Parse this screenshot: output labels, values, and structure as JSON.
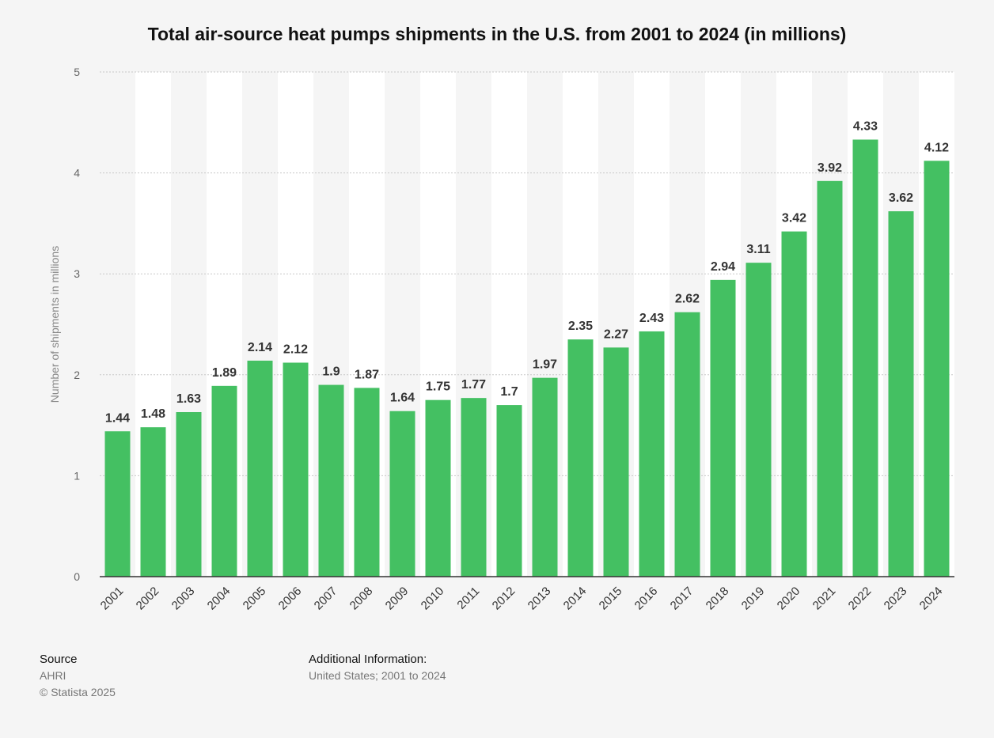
{
  "chart_data": {
    "type": "bar",
    "title": "Total air-source heat pumps shipments in the U.S. from 2001 to 2024 (in millions)",
    "xlabel": "",
    "ylabel": "Number of shipments in millions",
    "ylim": [
      0,
      5
    ],
    "yticks": [
      0,
      1,
      2,
      3,
      4,
      5
    ],
    "grid": true,
    "categories": [
      "2001",
      "2002",
      "2003",
      "2004",
      "2005",
      "2006",
      "2007",
      "2008",
      "2009",
      "2010",
      "2011",
      "2012",
      "2013",
      "2014",
      "2015",
      "2016",
      "2017",
      "2018",
      "2019",
      "2020",
      "2021",
      "2022",
      "2023",
      "2024"
    ],
    "values": [
      1.44,
      1.48,
      1.63,
      1.89,
      2.14,
      2.12,
      1.9,
      1.87,
      1.64,
      1.75,
      1.77,
      1.7,
      1.97,
      2.35,
      2.27,
      2.43,
      2.62,
      2.94,
      3.11,
      3.42,
      3.92,
      4.33,
      3.62,
      4.12
    ],
    "bar_color": "#44c062"
  },
  "footer": {
    "source_label": "Source",
    "source_value": "AHRI",
    "copyright": "© Statista 2025",
    "info_label": "Additional Information:",
    "info_value": "United States; 2001 to 2024"
  }
}
